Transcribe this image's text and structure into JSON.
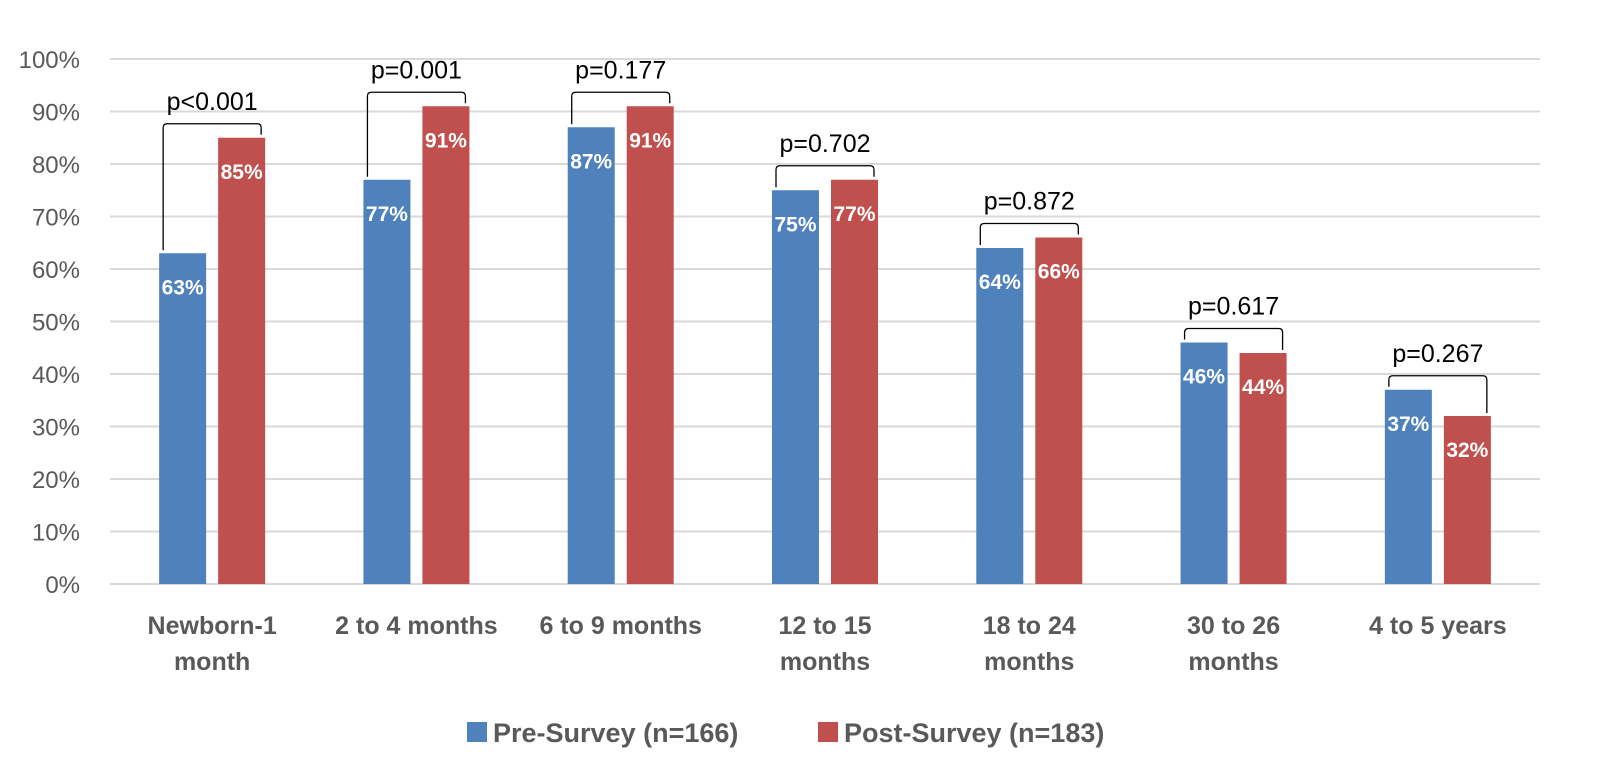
{
  "chart_data": {
    "type": "bar",
    "categories": [
      [
        "Newborn-1",
        "month"
      ],
      [
        "2 to 4 months"
      ],
      [
        "6 to 9 months"
      ],
      [
        "12 to 15",
        "months"
      ],
      [
        "18 to 24",
        "months"
      ],
      [
        "30 to 26",
        "months"
      ],
      [
        "4 to 5 years"
      ]
    ],
    "series": [
      {
        "name": "Pre-Survey (n=166)",
        "color": "#4f81bd",
        "values": [
          63,
          77,
          87,
          75,
          64,
          46,
          37
        ],
        "labels": [
          "63%",
          "77%",
          "87%",
          "75%",
          "64%",
          "46%",
          "37%"
        ]
      },
      {
        "name": "Post-Survey (n=183)",
        "color": "#c0504d",
        "values": [
          85,
          91,
          91,
          77,
          66,
          44,
          32
        ],
        "labels": [
          "85%",
          "91%",
          "91%",
          "77%",
          "66%",
          "44%",
          "32%"
        ]
      }
    ],
    "p_values": [
      "p<0.001",
      "p=0.001",
      "p=0.177",
      "p=0.702",
      "p=0.872",
      "p=0.617",
      "p=0.267"
    ],
    "yticks": [
      "0%",
      "10%",
      "20%",
      "30%",
      "40%",
      "50%",
      "60%",
      "70%",
      "80%",
      "90%",
      "100%"
    ],
    "ylim": [
      0,
      100
    ],
    "grid": true,
    "legend": "bottom",
    "title": "",
    "xlabel": "",
    "ylabel": ""
  }
}
